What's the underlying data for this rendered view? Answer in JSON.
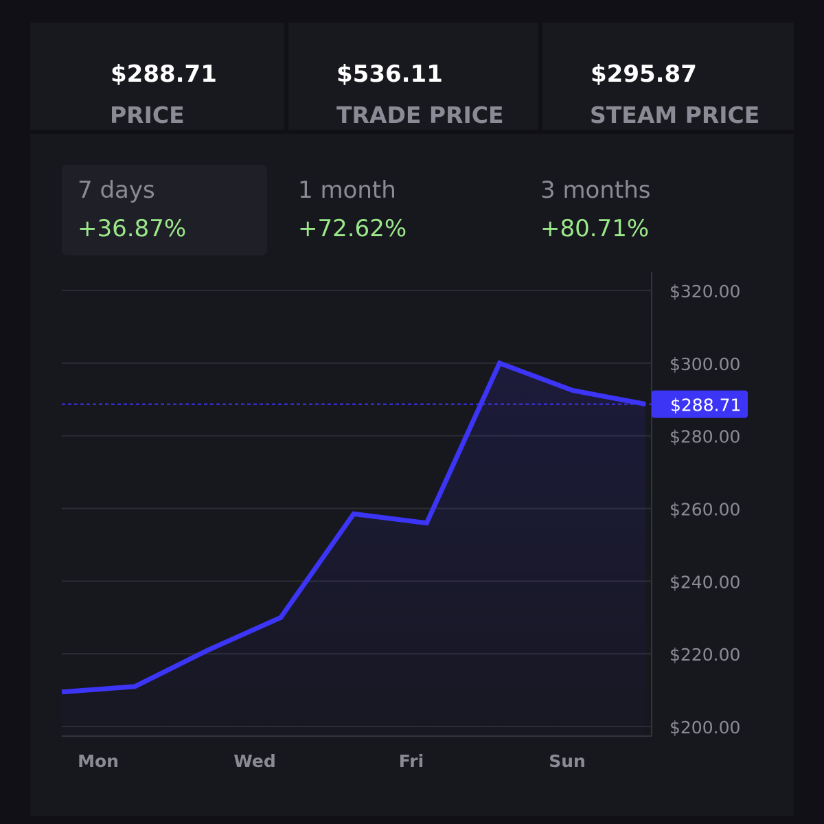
{
  "stats": [
    {
      "value": "$288.71",
      "label": "PRICE"
    },
    {
      "value": "$536.11",
      "label": "TRADE PRICE"
    },
    {
      "value": "$295.87",
      "label": "STEAM PRICE"
    }
  ],
  "ranges": [
    {
      "label": "7 days",
      "change": "+36.87%",
      "active": true
    },
    {
      "label": "1 month",
      "change": "+72.62%",
      "active": false
    },
    {
      "label": "3 months",
      "change": "+80.71%",
      "active": false
    }
  ],
  "colors": {
    "line": "#3d35f5",
    "positive": "#9be88a",
    "current_badge_bg": "#3d35f5"
  },
  "chart_data": {
    "type": "line",
    "x_labels": [
      "Mon",
      "Wed",
      "Fri",
      "Sun"
    ],
    "series": [
      {
        "name": "Price",
        "values": [
          209.5,
          211,
          221,
          230,
          258.5,
          256,
          300,
          292.5,
          288.71
        ]
      }
    ],
    "y_ticks": [
      "$320.00",
      "$300.00",
      "$280.00",
      "$260.00",
      "$240.00",
      "$220.00",
      "$200.00"
    ],
    "y_tick_values": [
      320,
      300,
      280,
      260,
      240,
      220,
      200
    ],
    "ylim": [
      200,
      320
    ],
    "current_value": 288.71,
    "current_label": "$288.71"
  }
}
